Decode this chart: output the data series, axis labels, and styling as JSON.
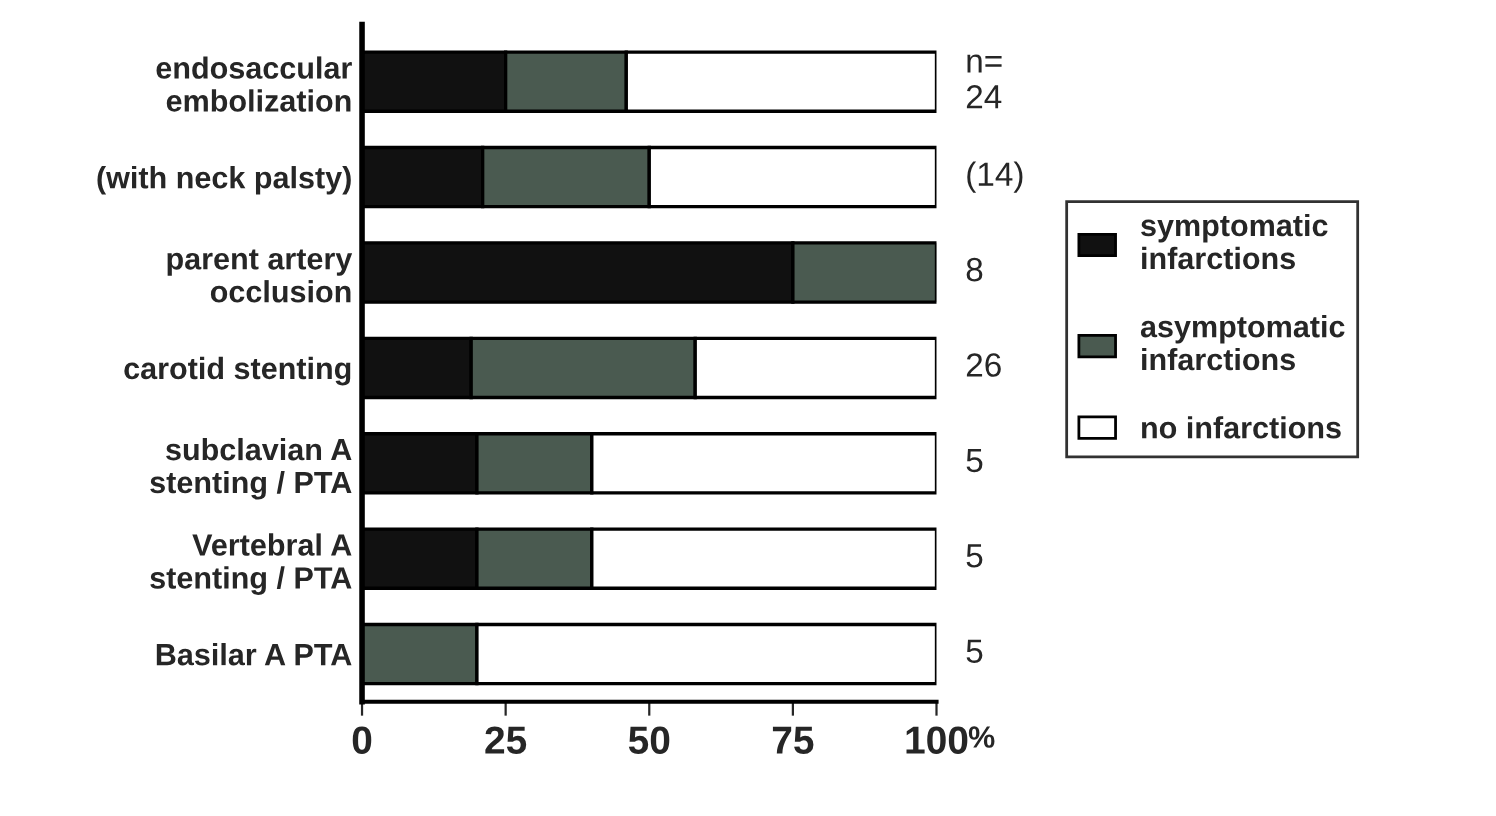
{
  "chart_data": {
    "type": "bar",
    "orientation": "horizontal",
    "stacked": true,
    "categories": [
      "endosaccular\nembolization",
      "(with neck palsty)",
      "parent artery\nocclusion",
      "carotid stenting",
      "subclavian A\nstenting / PTA",
      "Vertebral A\nstenting / PTA",
      "Basilar A PTA"
    ],
    "series": [
      {
        "name": "symptomatic\ninfarctions",
        "color": "#111111",
        "values": [
          25,
          21,
          75,
          19,
          20,
          20,
          0
        ]
      },
      {
        "name": "asymptomatic\ninfarctions",
        "color": "#4a5a50",
        "values": [
          21,
          29,
          25,
          39,
          20,
          20,
          20
        ]
      },
      {
        "name": "no infarctions",
        "color": "#ffffff",
        "values": [
          54,
          50,
          0,
          42,
          60,
          60,
          80
        ]
      }
    ],
    "xlim": [
      0,
      100
    ],
    "xticks": [
      0,
      25,
      50,
      75,
      100
    ],
    "xlabel": "%",
    "annotations": [
      "n=\n24",
      "(14)",
      "8",
      "26",
      "5",
      "5",
      "5"
    ],
    "legend": "right",
    "grid": false
  }
}
